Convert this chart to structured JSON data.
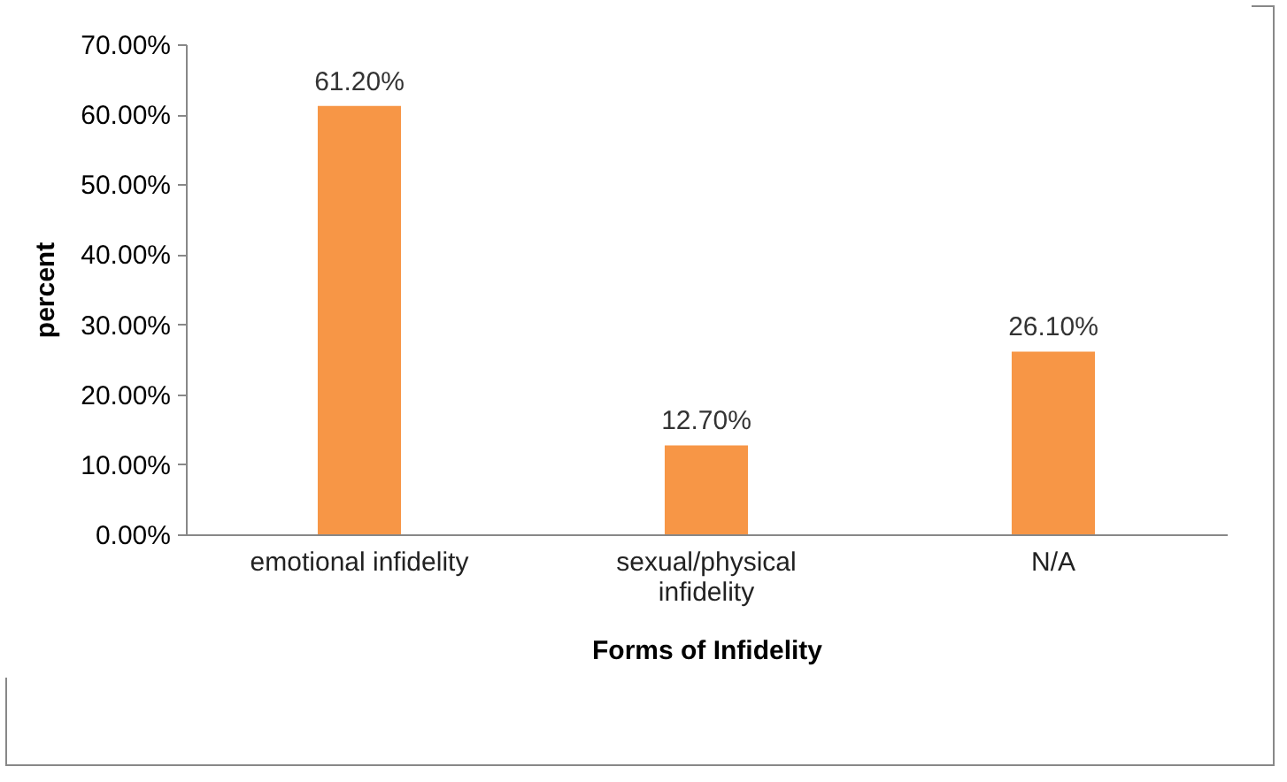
{
  "chart_data": {
    "type": "bar",
    "xlabel": "Forms of Infidelity",
    "ylabel": "percent",
    "categories": [
      "emotional infidelity",
      "sexual/physical infidelity",
      "N/A"
    ],
    "values": [
      61.2,
      12.7,
      26.1
    ],
    "value_labels": [
      "61.20%",
      "12.70%",
      "26.10%"
    ],
    "color": "#f79646",
    "ylim": [
      0,
      70
    ],
    "yticks": [
      {
        "value": 0,
        "label": "0.00%"
      },
      {
        "value": 10,
        "label": "10.00%"
      },
      {
        "value": 20,
        "label": "20.00%"
      },
      {
        "value": 30,
        "label": "30.00%"
      },
      {
        "value": 40,
        "label": "40.00%"
      },
      {
        "value": 50,
        "label": "50.00%"
      },
      {
        "value": 60,
        "label": "60.00%"
      },
      {
        "value": 70,
        "label": "70.00%"
      }
    ],
    "grid": false,
    "legend": false
  }
}
